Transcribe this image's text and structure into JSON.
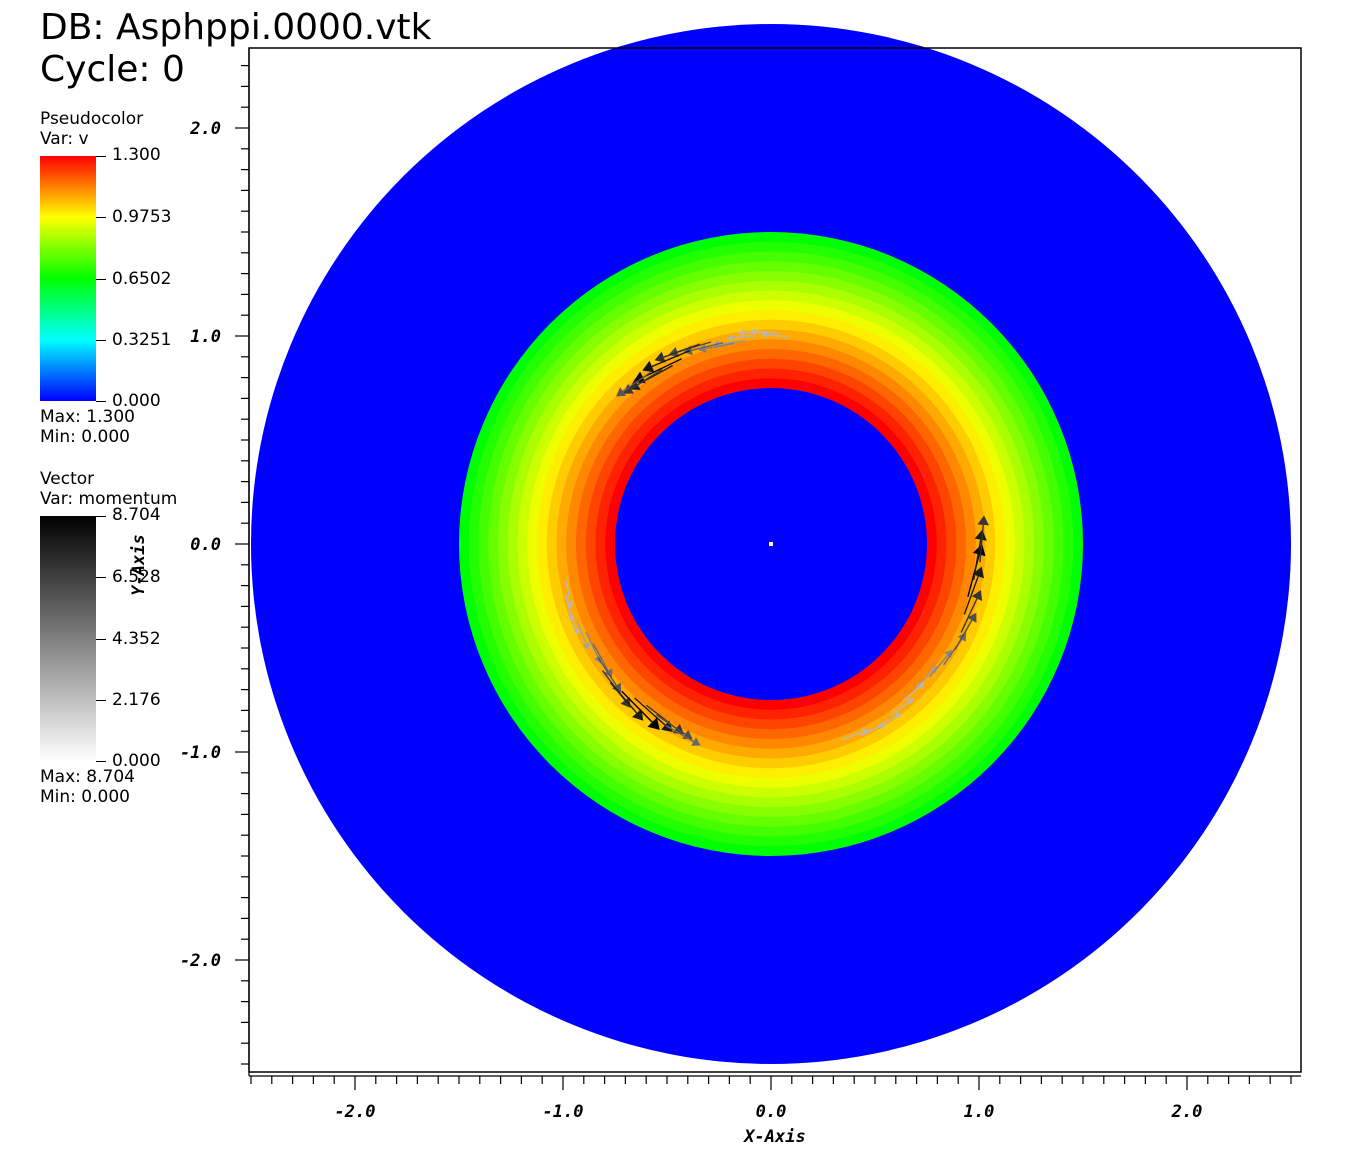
{
  "header": {
    "db": "DB: Asphppi.0000.vtk",
    "cycle": "Cycle: 0"
  },
  "pseudocolor_legend": {
    "title": "Pseudocolor",
    "var": "Var: v",
    "ticks": [
      "1.300",
      "0.9753",
      "0.6502",
      "0.3251",
      "0.000"
    ],
    "max": "Max:  1.300",
    "min": "Min:  0.000",
    "colormap": [
      "#ff0000",
      "#ffff00",
      "#00ff00",
      "#00ffff",
      "#0000ff"
    ]
  },
  "vector_legend": {
    "title": "Vector",
    "var": "Var: momentum",
    "ticks": [
      "8.704",
      "6.528",
      "4.352",
      "2.176",
      "0.000"
    ],
    "max": "Max:  8.704",
    "min": "Min:  0.000",
    "colormap": [
      "#000000",
      "#ffffff"
    ]
  },
  "chart_data": {
    "type": "pseudocolor_with_vectors",
    "xlabel": "X-Axis",
    "ylabel": "Y-Axis",
    "xlim": [
      -2.5,
      2.5
    ],
    "ylim": [
      -2.5,
      2.5
    ],
    "xticks": [
      -2.0,
      -1.0,
      0.0,
      1.0,
      2.0
    ],
    "yticks": [
      2.0,
      1.0,
      0.0,
      -1.0,
      -2.0
    ],
    "xtick_labels": [
      "-2.0",
      "-1.0",
      "0.0",
      "1.0",
      "2.0"
    ],
    "ytick_labels": [
      "2.0",
      "1.0",
      "0.0",
      "-1.0",
      "-2.0"
    ],
    "field": {
      "variable": "v",
      "domain_outer_radius": 2.5,
      "annulus_inner_radius": 0.75,
      "annulus_outer_radius": 1.5,
      "value_at_inner_radius": 1.3,
      "value_at_outer_radius": 0.65,
      "value_outside_annulus": 0.0,
      "bands": 16
    },
    "vectors": {
      "variable": "momentum",
      "direction": "counterclockwise",
      "radius": 1.0,
      "clusters": [
        {
          "start_angle_deg": 85,
          "end_angle_deg": 125,
          "magnitude_peak_angle_deg": 115
        },
        {
          "start_angle_deg": 190,
          "end_angle_deg": 240,
          "magnitude_peak_angle_deg": 225
        },
        {
          "start_angle_deg": 290,
          "end_angle_deg": 355,
          "magnitude_peak_angle_deg": 345
        }
      ],
      "max_magnitude": 8.704
    }
  },
  "colors": {
    "background": "#ffffff",
    "domain": "#0000ff",
    "axis": "#000000"
  }
}
